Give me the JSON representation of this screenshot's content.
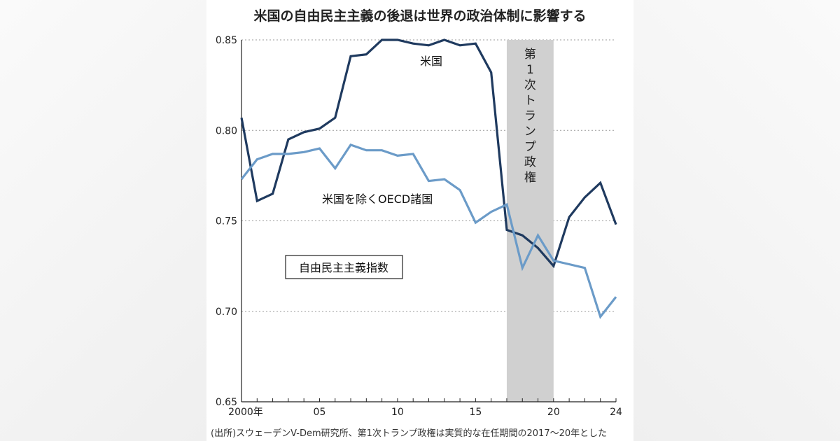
{
  "title": "米国の自由民主主義の後退は世界の政治体制に影響する",
  "source": "(出所)スウェーデンV-Dem研究所、第1次トランプ政権は実質的な在任期間の2017〜20年とした",
  "chart_data": {
    "type": "line",
    "title": "米国の自由民主主義の後退は世界の政治体制に影響する",
    "ylim": [
      0.65,
      0.85
    ],
    "xlim": [
      2000,
      2024
    ],
    "yticks": [
      "0.85",
      "0.80",
      "0.75",
      "0.70",
      "0.65"
    ],
    "xticks": [
      {
        "x": 2000,
        "label": "2000年"
      },
      {
        "x": 2005,
        "label": "05"
      },
      {
        "x": 2010,
        "label": "10"
      },
      {
        "x": 2015,
        "label": "15"
      },
      {
        "x": 2020,
        "label": "20"
      },
      {
        "x": 2024,
        "label": "24"
      }
    ],
    "grid": "horizontal-dotted",
    "legend_box": "自由民主主義指数",
    "shaded_region": {
      "x0": 2017,
      "x1": 2020,
      "label": "第1次トランプ政権"
    },
    "series": [
      {
        "name": "米国",
        "color": "#1f3a5f",
        "x": [
          2000,
          2001,
          2002,
          2003,
          2004,
          2005,
          2006,
          2007,
          2008,
          2009,
          2010,
          2011,
          2012,
          2013,
          2014,
          2015,
          2016,
          2017,
          2018,
          2019,
          2020,
          2021,
          2022,
          2023,
          2024
        ],
        "values": [
          0.807,
          0.761,
          0.765,
          0.795,
          0.799,
          0.801,
          0.807,
          0.841,
          0.842,
          0.85,
          0.85,
          0.848,
          0.847,
          0.85,
          0.847,
          0.848,
          0.832,
          0.745,
          0.742,
          0.735,
          0.725,
          0.752,
          0.763,
          0.771,
          0.748
        ]
      },
      {
        "name": "米国を除くOECD諸国",
        "color": "#6b9bc8",
        "x": [
          2000,
          2001,
          2002,
          2003,
          2004,
          2005,
          2006,
          2007,
          2008,
          2009,
          2010,
          2011,
          2012,
          2013,
          2014,
          2015,
          2016,
          2017,
          2018,
          2019,
          2020,
          2021,
          2022,
          2023,
          2024
        ],
        "values": [
          0.773,
          0.784,
          0.787,
          0.787,
          0.788,
          0.79,
          0.779,
          0.792,
          0.789,
          0.789,
          0.786,
          0.787,
          0.772,
          0.773,
          0.767,
          0.749,
          0.755,
          0.759,
          0.724,
          0.742,
          0.728,
          0.726,
          0.724,
          0.697,
          0.708
        ]
      }
    ]
  }
}
